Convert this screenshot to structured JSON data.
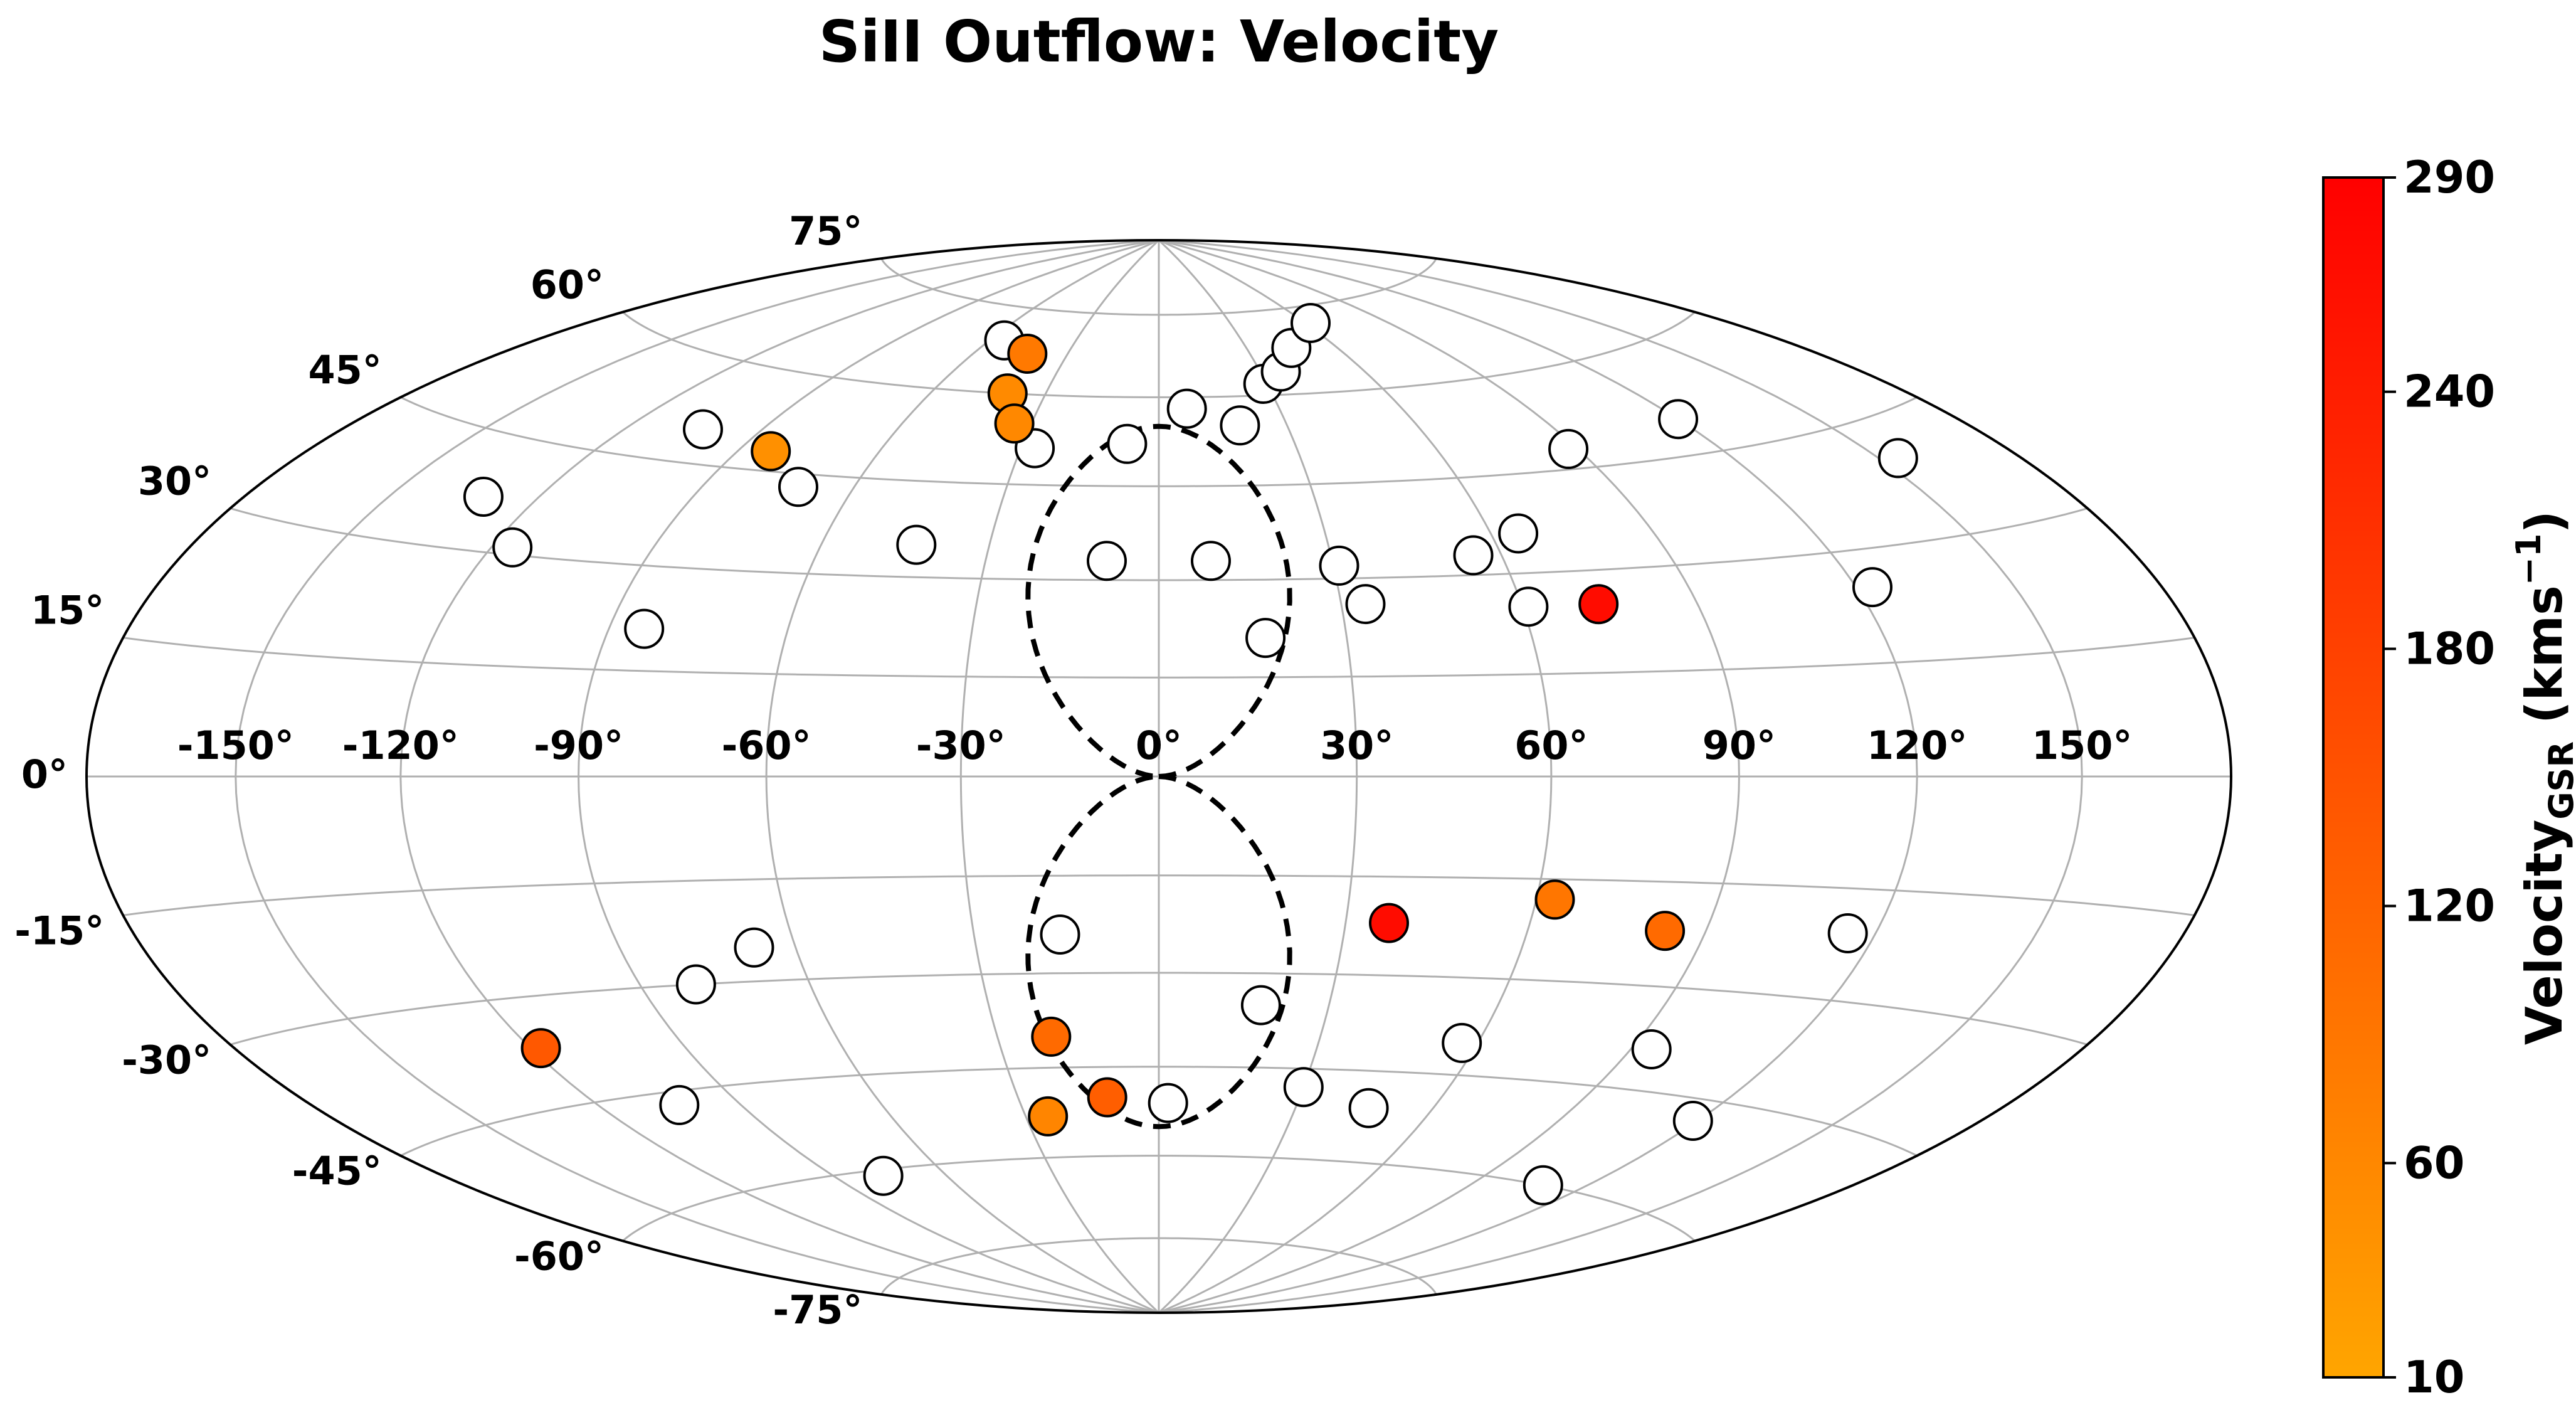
{
  "chart_data": {
    "type": "scatter",
    "projection": "aitoff-hammer (all-sky, equal-area ellipse)",
    "title": "SiII Outflow: Velocity",
    "xlabel": "",
    "ylabel": "",
    "lon_ticks": [
      -150,
      -120,
      -90,
      -60,
      -30,
      0,
      30,
      60,
      90,
      120,
      150
    ],
    "lon_tick_labels": [
      "-150°",
      "-120°",
      "-90°",
      "-60°",
      "-30°",
      "0°",
      "30°",
      "60°",
      "90°",
      "120°",
      "150°"
    ],
    "lat_ticks": [
      -75,
      -60,
      -45,
      -30,
      -15,
      0,
      15,
      30,
      45,
      60,
      75
    ],
    "lat_tick_labels": [
      "-75°",
      "-60°",
      "-45°",
      "-30°",
      "-15°",
      "0°",
      "15°",
      "30°",
      "45°",
      "60°",
      "75°"
    ],
    "grid": true,
    "xlim": [
      -180,
      180
    ],
    "ylim": [
      -90,
      90
    ],
    "colorbar": {
      "label_main": "Velocity",
      "label_sub": "GSR",
      "label_units_open": " (kms",
      "label_units_sup": "−1",
      "label_units_close": ")",
      "vmin": 10,
      "vmax": 290,
      "ticks": [
        10,
        60,
        120,
        180,
        240,
        290
      ],
      "tick_labels": [
        "10",
        "60",
        "120",
        "180",
        "240",
        "290"
      ],
      "cmap_stops": [
        "#ffa500",
        "#ff0000"
      ]
    },
    "bubble_outline": {
      "description": "dashed closed outline",
      "lon_halfwidth": 25,
      "lat_extent": 55
    },
    "detections": [
      {
        "lon": -43,
        "lat": 67,
        "v": 85
      },
      {
        "lon": -40,
        "lat": 60,
        "v": 55
      },
      {
        "lon": -34,
        "lat": 55,
        "v": 60
      },
      {
        "lon": -83,
        "lat": 48,
        "v": 45
      },
      {
        "lon": 73,
        "lat": 25,
        "v": 270
      },
      {
        "lon": 37,
        "lat": -22,
        "v": 270
      },
      {
        "lon": 63,
        "lat": -18,
        "v": 90
      },
      {
        "lon": 83,
        "lat": -22,
        "v": 110
      },
      {
        "lon": -118,
        "lat": -37,
        "v": 140
      },
      {
        "lon": -20,
        "lat": -40,
        "v": 110
      },
      {
        "lon": -25,
        "lat": -53,
        "v": 65
      },
      {
        "lon": -11,
        "lat": -50,
        "v": 130
      }
    ],
    "non_detections": [
      {
        "lon": -55,
        "lat": 69
      },
      {
        "lon": -103,
        "lat": 50
      },
      {
        "lon": -131,
        "lat": 37
      },
      {
        "lon": -116,
        "lat": 31
      },
      {
        "lon": -71,
        "lat": 43
      },
      {
        "lon": -27,
        "lat": 51
      },
      {
        "lon": -7,
        "lat": 52
      },
      {
        "lon": 7,
        "lat": 58
      },
      {
        "lon": 19,
        "lat": 55
      },
      {
        "lon": 29,
        "lat": 62
      },
      {
        "lon": 36,
        "lat": 64
      },
      {
        "lon": 45,
        "lat": 68
      },
      {
        "lon": 62,
        "lat": 72
      },
      {
        "lon": 88,
        "lat": 48
      },
      {
        "lon": 120,
        "lat": 50
      },
      {
        "lon": 154,
        "lat": 40
      },
      {
        "lon": 65,
        "lat": 36
      },
      {
        "lon": 55,
        "lat": 33
      },
      {
        "lon": 31,
        "lat": 32
      },
      {
        "lon": -43,
        "lat": 35
      },
      {
        "lon": -9,
        "lat": 33
      },
      {
        "lon": 9,
        "lat": 33
      },
      {
        "lon": 34,
        "lat": 26
      },
      {
        "lon": 17,
        "lat": 21
      },
      {
        "lon": 61,
        "lat": 25
      },
      {
        "lon": 123,
        "lat": 25
      },
      {
        "lon": -84,
        "lat": 21
      },
      {
        "lon": -67,
        "lat": -25
      },
      {
        "lon": -80,
        "lat": -30
      },
      {
        "lon": -16,
        "lat": -24
      },
      {
        "lon": 115,
        "lat": -21
      },
      {
        "lon": 18,
        "lat": -35
      },
      {
        "lon": 57,
        "lat": -40
      },
      {
        "lon": 94,
        "lat": -39
      },
      {
        "lon": -103,
        "lat": -47
      },
      {
        "lon": 30,
        "lat": -48
      },
      {
        "lon": 46,
        "lat": -51
      },
      {
        "lon": 119,
        "lat": -48
      },
      {
        "lon": 2,
        "lat": -51
      },
      {
        "lon": -77,
        "lat": -61
      },
      {
        "lon": 109,
        "lat": -60
      }
    ]
  }
}
